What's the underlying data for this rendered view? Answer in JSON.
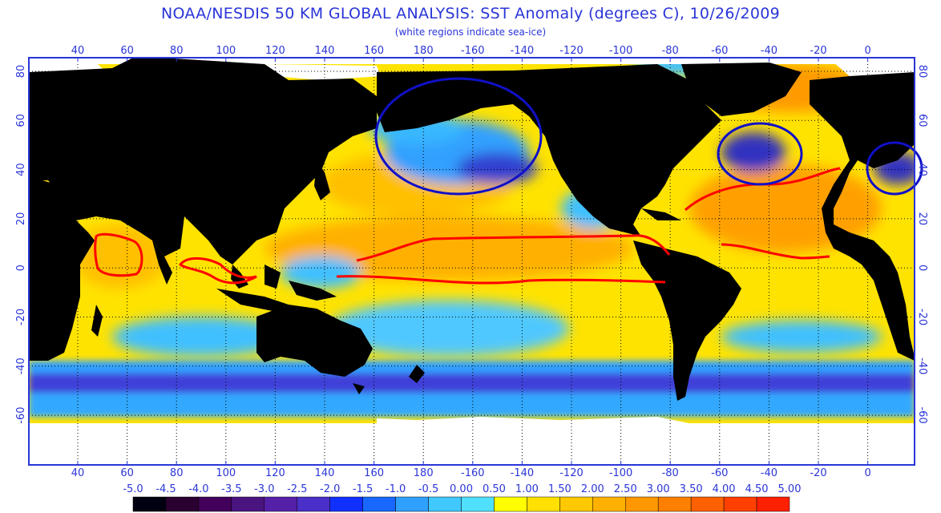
{
  "title": "NOAA/NESDIS 50 KM GLOBAL ANALYSIS: SST Anomaly (degrees C), 10/26/2009",
  "subtitle": "(white regions indicate sea-ice)",
  "lon_labels": [
    "40",
    "60",
    "80",
    "100",
    "120",
    "140",
    "160",
    "180",
    "-160",
    "-140",
    "-120",
    "-100",
    "-80",
    "-60",
    "-40",
    "-20",
    "0"
  ],
  "lat_labels": [
    "80",
    "60",
    "40",
    "20",
    "0",
    "-20",
    "-40",
    "-60"
  ],
  "colorbar": {
    "labels": [
      "-5.0",
      "-4.5",
      "-4.0",
      "-3.5",
      "-3.0",
      "-2.5",
      "-2.0",
      "-1.5",
      "-1.0",
      "-0.5",
      "0.00",
      "0.50",
      "1.00",
      "1.50",
      "2.00",
      "2.50",
      "3.00",
      "3.50",
      "4.00",
      "4.50",
      "5.00"
    ],
    "colors": [
      "#000010",
      "#2a0030",
      "#43005a",
      "#4a1480",
      "#5520a8",
      "#4a30c8",
      "#1030ff",
      "#1868ff",
      "#30a0ff",
      "#40c8ff",
      "#50e0ff",
      "#ffff00",
      "#ffe000",
      "#ffc800",
      "#ffb000",
      "#ff9800",
      "#ff8000",
      "#ff6000",
      "#ff4000",
      "#ff2000"
    ]
  },
  "map_colors": {
    "land": "#000000",
    "ice": "#ffffff",
    "neutral_ocean": "#ffe300",
    "warm_ocean": "#ffb000",
    "cool_ocean": "#38b8ff",
    "cold_ocean": "#3030d0",
    "annotation_red": "#ff0000",
    "annotation_blue": "#1010c8",
    "grid_blue": "#2a35d8"
  }
}
